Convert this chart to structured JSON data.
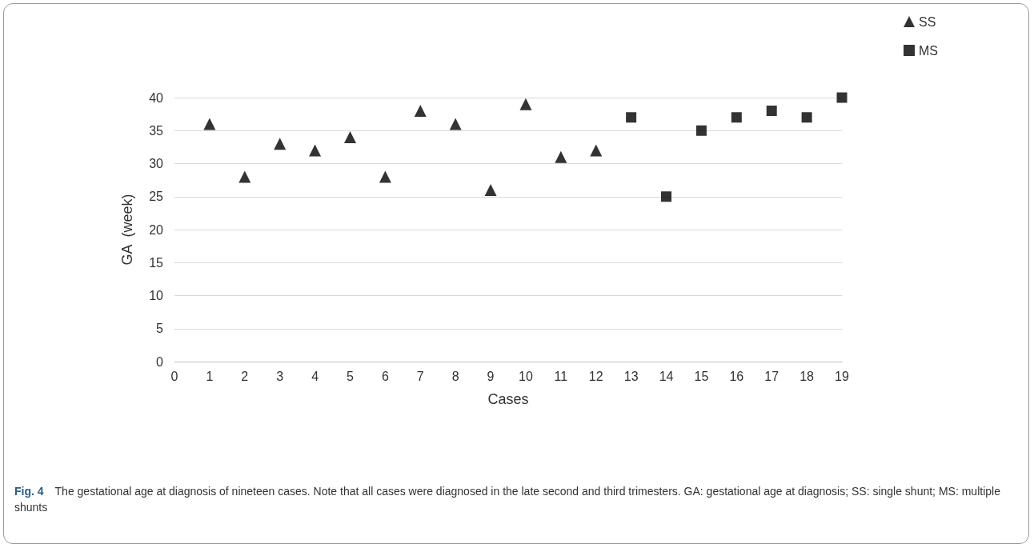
{
  "chart_data": {
    "type": "scatter",
    "xlabel": "Cases",
    "ylabel": "GA  (week)",
    "annotations": [
      "Fig. 4",
      "The gestational age at diagnosis of nineteen cases. Note that all cases were diagnosed in the late second and third trimesters. GA: gestational age at diagnosis; SS: single shunt; MS: multiple shunts"
    ],
    "series": [
      {
        "name": "SS",
        "color": "#000000",
        "marker": "triangle",
        "x": [
          1,
          2,
          3,
          4,
          5,
          6,
          7,
          8,
          9,
          10,
          11,
          12
        ],
        "values": [
          36,
          28,
          33,
          32,
          34,
          28,
          38,
          36,
          26,
          39,
          31,
          32
        ]
      },
      {
        "name": "MS",
        "color": "#000000",
        "marker": "square",
        "x": [
          13,
          14,
          15,
          16,
          17,
          18,
          19
        ],
        "values": [
          37,
          25,
          35,
          37,
          38,
          37,
          40
        ]
      }
    ],
    "xlim": [
      0,
      19
    ],
    "xticks": [
      0,
      1,
      2,
      3,
      4,
      5,
      6,
      7,
      8,
      9,
      10,
      11,
      12,
      13,
      14,
      15,
      16,
      17,
      18,
      19
    ],
    "ylim": [
      0,
      40
    ],
    "yticks": [
      0,
      5,
      10,
      15,
      20,
      25,
      30,
      35,
      40
    ],
    "grid": "y",
    "legend": "top right"
  }
}
